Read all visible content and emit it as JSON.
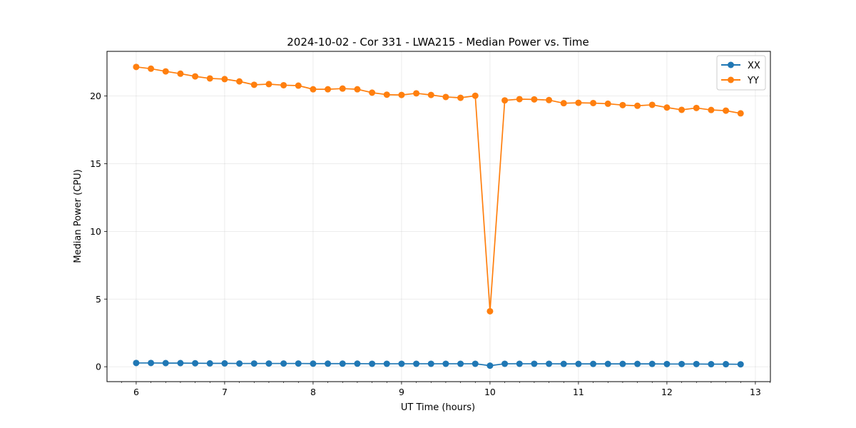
{
  "chart_data": {
    "type": "line",
    "title": "2024-10-02 - Cor 331 - LWA215 - Median Power vs. Time",
    "xlabel": "UT Time (hours)",
    "ylabel": "Median Power (CPU)",
    "xlim": [
      5.67,
      13.17
    ],
    "ylim": [
      -1.1,
      23.3
    ],
    "xticks": [
      6,
      7,
      8,
      9,
      10,
      11,
      12,
      13
    ],
    "yticks": [
      0,
      5,
      10,
      15,
      20
    ],
    "grid": true,
    "legend_position": "top-right",
    "x": [
      6.0,
      6.1667,
      6.3333,
      6.5,
      6.6667,
      6.8333,
      7.0,
      7.1667,
      7.3333,
      7.5,
      7.6667,
      7.8333,
      8.0,
      8.1667,
      8.3333,
      8.5,
      8.6667,
      8.8333,
      9.0,
      9.1667,
      9.3333,
      9.5,
      9.6667,
      9.8333,
      10.0,
      10.1667,
      10.3333,
      10.5,
      10.6667,
      10.8333,
      11.0,
      11.1667,
      11.3333,
      11.5,
      11.6667,
      11.8333,
      12.0,
      12.1667,
      12.3333,
      12.5,
      12.6667,
      12.8333
    ],
    "series": [
      {
        "name": "XX",
        "color": "#1f77b4",
        "values": [
          0.28,
          0.28,
          0.27,
          0.27,
          0.26,
          0.25,
          0.25,
          0.24,
          0.24,
          0.24,
          0.24,
          0.24,
          0.23,
          0.23,
          0.23,
          0.23,
          0.22,
          0.22,
          0.22,
          0.22,
          0.22,
          0.22,
          0.22,
          0.22,
          0.08,
          0.22,
          0.22,
          0.22,
          0.22,
          0.21,
          0.21,
          0.21,
          0.21,
          0.21,
          0.21,
          0.21,
          0.2,
          0.2,
          0.2,
          0.19,
          0.19,
          0.18
        ]
      },
      {
        "name": "YY",
        "color": "#ff7f0e",
        "values": [
          22.15,
          22.02,
          21.82,
          21.65,
          21.45,
          21.3,
          21.25,
          21.08,
          20.83,
          20.88,
          20.8,
          20.77,
          20.5,
          20.5,
          20.55,
          20.5,
          20.25,
          20.1,
          20.08,
          20.2,
          20.08,
          19.93,
          19.87,
          20.02,
          4.1,
          19.68,
          19.77,
          19.75,
          19.7,
          19.47,
          19.5,
          19.48,
          19.43,
          19.33,
          19.28,
          19.35,
          19.15,
          18.98,
          19.12,
          18.97,
          18.92,
          18.72
        ]
      }
    ]
  }
}
